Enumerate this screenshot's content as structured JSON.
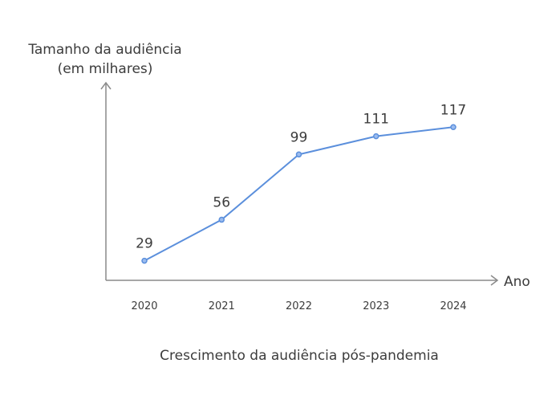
{
  "chart_data": {
    "type": "line",
    "categories": [
      "2020",
      "2021",
      "2022",
      "2023",
      "2024"
    ],
    "series": [
      {
        "values": [
          29,
          56,
          99,
          111,
          117
        ]
      }
    ],
    "data_labels": [
      "29",
      "56",
      "99",
      "111",
      "117"
    ],
    "title": "Crescimento da audiência pós-pandemia",
    "ylabel_line1": "Tamanho da audiência",
    "ylabel_line2": "(em milhares)",
    "xlabel": "Ano",
    "ylim": [
      0,
      130
    ],
    "grid": false,
    "legend": "none",
    "colors": {
      "line": "#5b8fdc",
      "axis": "#8a8a8a",
      "text": "#3c3c3c"
    }
  }
}
